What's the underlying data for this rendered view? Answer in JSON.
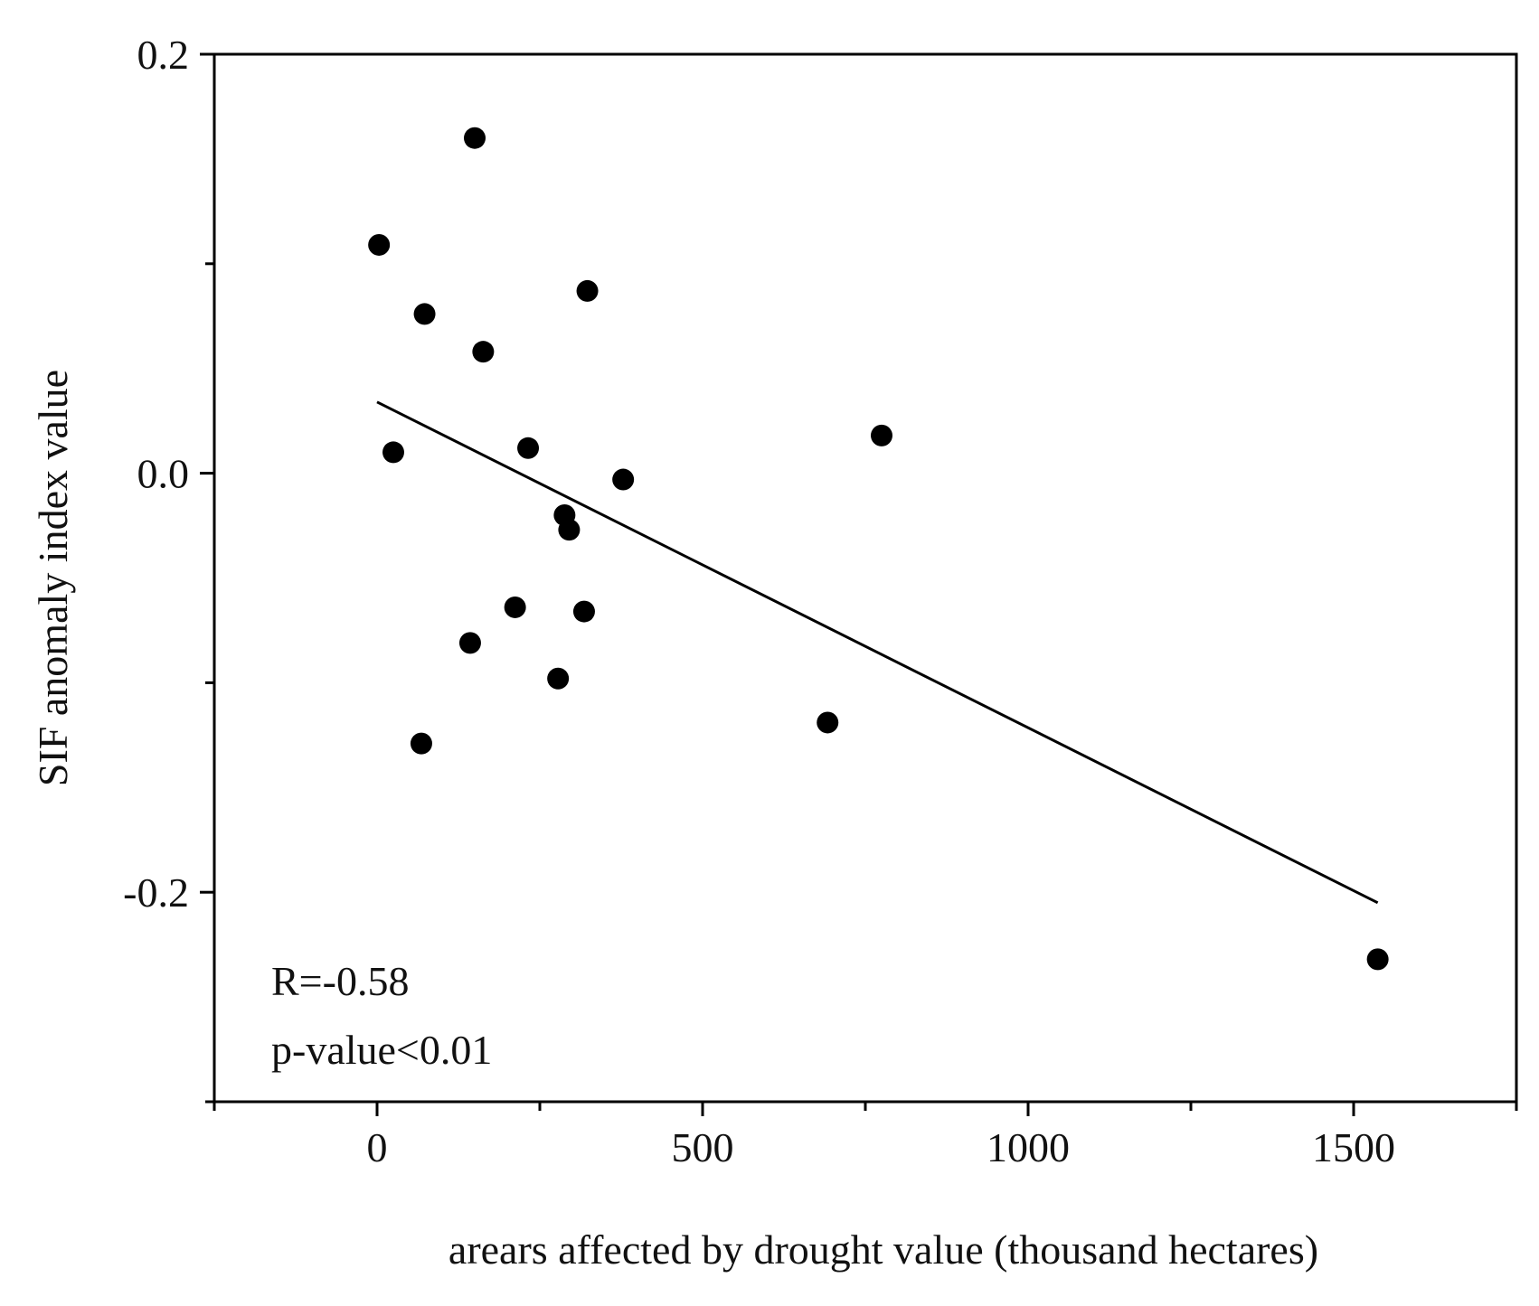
{
  "chart_data": {
    "type": "scatter",
    "title": "",
    "xlabel": "arears affected by drought value (thousand hectares)",
    "ylabel": "SIF anomaly index value",
    "xlim": [
      -250,
      1750
    ],
    "ylim": [
      -0.3,
      0.2
    ],
    "x_ticks": [
      0,
      500,
      1000,
      1500
    ],
    "x_tick_labels": [
      "0",
      "500",
      "1000",
      "1500"
    ],
    "x_minor_ticks": [
      -250,
      250,
      750,
      1250,
      1750
    ],
    "y_ticks": [
      -0.2,
      0.0,
      0.2
    ],
    "y_tick_labels": [
      "-0.2",
      "0.0",
      "0.2"
    ],
    "y_minor_ticks": [
      -0.3,
      -0.1,
      0.1
    ],
    "grid": false,
    "legend": "none",
    "marker_color": "#000000",
    "points": [
      {
        "x": 150,
        "y": 0.16
      },
      {
        "x": 3,
        "y": 0.109
      },
      {
        "x": 323,
        "y": 0.087
      },
      {
        "x": 73,
        "y": 0.076
      },
      {
        "x": 163,
        "y": 0.058
      },
      {
        "x": 775,
        "y": 0.018
      },
      {
        "x": 25,
        "y": 0.01
      },
      {
        "x": 232,
        "y": 0.012
      },
      {
        "x": 378,
        "y": -0.003
      },
      {
        "x": 288,
        "y": -0.02
      },
      {
        "x": 295,
        "y": -0.027
      },
      {
        "x": 212,
        "y": -0.064
      },
      {
        "x": 318,
        "y": -0.066
      },
      {
        "x": 143,
        "y": -0.081
      },
      {
        "x": 278,
        "y": -0.098
      },
      {
        "x": 692,
        "y": -0.119
      },
      {
        "x": 68,
        "y": -0.129
      },
      {
        "x": 1537,
        "y": -0.232
      }
    ],
    "trendline": {
      "x": [
        0,
        1537
      ],
      "y": [
        0.034,
        -0.205
      ]
    },
    "annotations": [
      "R=-0.58",
      "p-value<0.01"
    ]
  }
}
